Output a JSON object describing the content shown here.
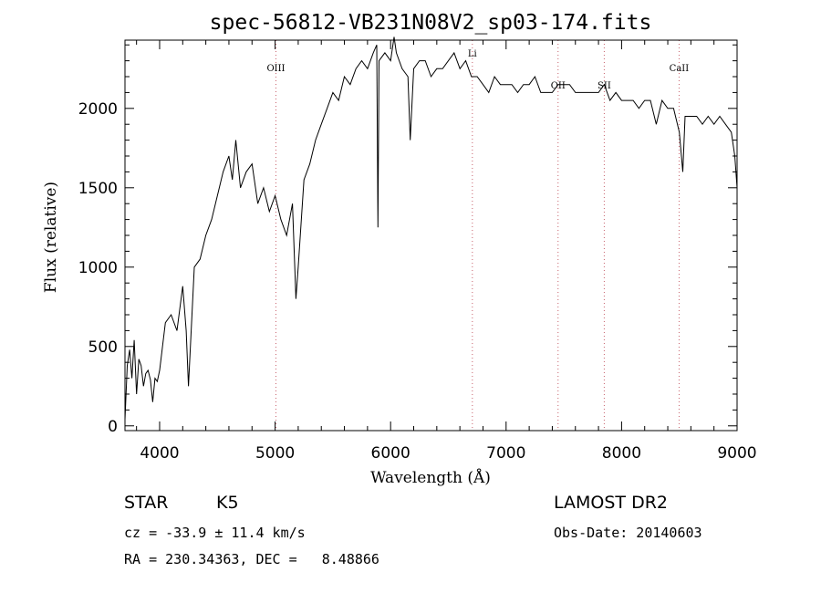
{
  "chart_data": {
    "type": "line",
    "title": "spec-56812-VB231N08V2_sp03-174.fits",
    "xlabel": "Wavelength (Å)",
    "ylabel": "Flux (relative)",
    "xlim": [
      3700,
      9000
    ],
    "ylim": [
      -30,
      2430
    ],
    "x_ticks": [
      4000,
      5000,
      6000,
      7000,
      8000,
      9000
    ],
    "y_ticks": [
      0,
      500,
      1000,
      1500,
      2000
    ],
    "grid": false,
    "legend": "none",
    "line_color": "#000000",
    "marker_line_color": "#c8636e",
    "series": [
      {
        "x": [
          3700,
          3720,
          3740,
          3760,
          3780,
          3800,
          3820,
          3840,
          3860,
          3880,
          3900,
          3920,
          3940,
          3960,
          3980,
          4000,
          4050,
          4100,
          4150,
          4200,
          4230,
          4250,
          4300,
          4350,
          4400,
          4450,
          4500,
          4550,
          4600,
          4630,
          4660,
          4700,
          4750,
          4800,
          4850,
          4900,
          4950,
          5000,
          5050,
          5100,
          5150,
          5180,
          5200,
          5250,
          5300,
          5350,
          5400,
          5450,
          5500,
          5550,
          5600,
          5650,
          5700,
          5750,
          5800,
          5850,
          5880,
          5890,
          5900,
          5950,
          6000,
          6030,
          6050,
          6100,
          6150,
          6170,
          6200,
          6250,
          6300,
          6350,
          6400,
          6450,
          6500,
          6550,
          6600,
          6650,
          6700,
          6750,
          6800,
          6850,
          6900,
          6950,
          7000,
          7050,
          7100,
          7150,
          7200,
          7250,
          7300,
          7350,
          7400,
          7450,
          7500,
          7550,
          7600,
          7650,
          7700,
          7750,
          7800,
          7850,
          7900,
          7950,
          8000,
          8050,
          8100,
          8150,
          8200,
          8250,
          8300,
          8350,
          8400,
          8450,
          8500,
          8530,
          8550,
          8600,
          8650,
          8700,
          8750,
          8800,
          8850,
          8900,
          8950,
          8980,
          9000
        ],
        "y": [
          40,
          380,
          480,
          300,
          540,
          200,
          420,
          380,
          250,
          330,
          350,
          290,
          150,
          300,
          280,
          350,
          650,
          700,
          600,
          880,
          600,
          250,
          1000,
          1050,
          1200,
          1300,
          1450,
          1600,
          1700,
          1550,
          1800,
          1500,
          1600,
          1650,
          1400,
          1500,
          1350,
          1450,
          1300,
          1200,
          1400,
          800,
          1000,
          1550,
          1650,
          1800,
          1900,
          2000,
          2100,
          2050,
          2200,
          2150,
          2250,
          2300,
          2250,
          2350,
          2400,
          1250,
          2300,
          2350,
          2300,
          2450,
          2350,
          2250,
          2200,
          1800,
          2250,
          2300,
          2300,
          2200,
          2250,
          2250,
          2300,
          2350,
          2250,
          2300,
          2200,
          2200,
          2150,
          2100,
          2200,
          2150,
          2150,
          2150,
          2100,
          2150,
          2150,
          2200,
          2100,
          2100,
          2100,
          2150,
          2150,
          2150,
          2100,
          2100,
          2100,
          2100,
          2100,
          2150,
          2050,
          2100,
          2050,
          2050,
          2050,
          2000,
          2050,
          2050,
          1900,
          2050,
          2000,
          2000,
          1850,
          1600,
          1950,
          1950,
          1950,
          1900,
          1950,
          1900,
          1950,
          1900,
          1850,
          1700,
          1500
        ]
      }
    ],
    "line_markers": [
      {
        "label": "OIII",
        "x": 5007
      },
      {
        "label": "Li",
        "x": 6708
      },
      {
        "label": "OII",
        "x": 7450
      },
      {
        "label": "SII",
        "x": 7850
      },
      {
        "label": "CaII",
        "x": 8498
      }
    ]
  },
  "info": {
    "object_class": "STAR",
    "subclass": "K5",
    "survey": "LAMOST DR2",
    "redshift": "cz = -33.9 ± 11.4 km/s",
    "obs_date": "Obs-Date: 20140603",
    "coords": "RA = 230.34363, DEC =   8.48866"
  }
}
